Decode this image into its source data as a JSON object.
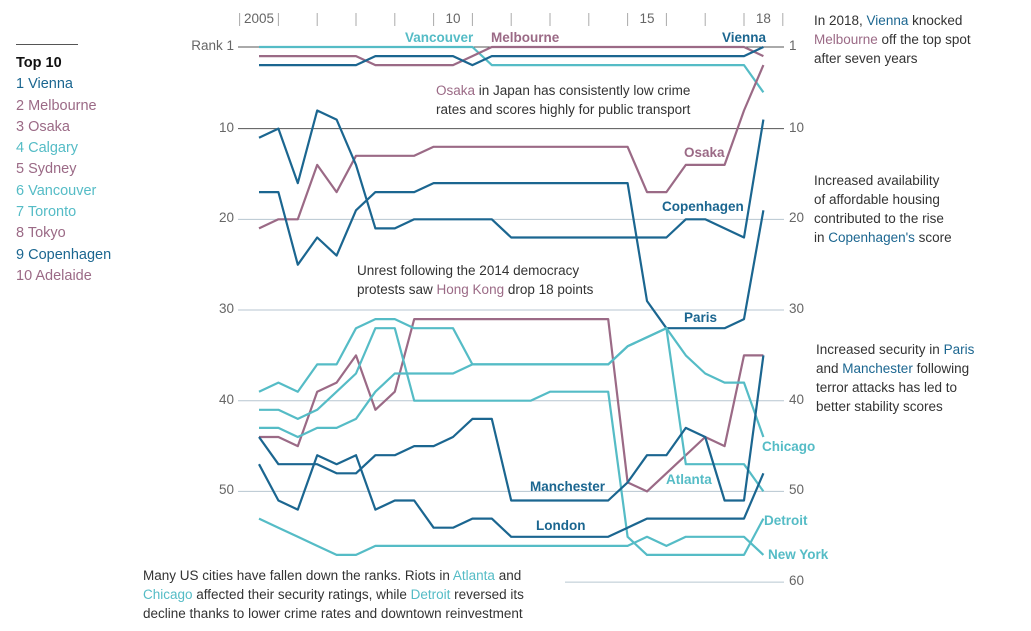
{
  "colors": {
    "blue": "#1b6690",
    "teal": "#55bcc6",
    "mauve": "#9b6a86",
    "text": "#333333",
    "grid_dark": "#555555",
    "grid_light": "#b7c6d0"
  },
  "legend": {
    "title": "Top 10",
    "items": [
      {
        "label": "1 Vienna",
        "color": "#1b6690"
      },
      {
        "label": "2 Melbourne",
        "color": "#9b6a86"
      },
      {
        "label": "3 Osaka",
        "color": "#9b6a86"
      },
      {
        "label": "4 Calgary",
        "color": "#55bcc6"
      },
      {
        "label": "5 Sydney",
        "color": "#9b6a86"
      },
      {
        "label": "6 Vancouver",
        "color": "#55bcc6"
      },
      {
        "label": "7 Toronto",
        "color": "#55bcc6"
      },
      {
        "label": "8 Tokyo",
        "color": "#9b6a86"
      },
      {
        "label": "9 Copenhagen",
        "color": "#1b6690"
      },
      {
        "label": "10 Adelaide",
        "color": "#9b6a86"
      }
    ]
  },
  "chart_data": {
    "type": "line",
    "subtype": "bump chart",
    "x_tick_labels": [
      {
        "year": 2005,
        "label": "2005"
      },
      {
        "year": 2010,
        "label": "10"
      },
      {
        "year": 2015,
        "label": "15"
      },
      {
        "year": 2018,
        "label": "18"
      }
    ],
    "xlim": [
      2005,
      2018
    ],
    "y_reversed": true,
    "ylim": [
      1,
      60
    ],
    "y_ticks_left": [
      {
        "rank": 1,
        "label": "Rank 1"
      },
      {
        "rank": 10,
        "label": "10"
      },
      {
        "rank": 20,
        "label": "20"
      },
      {
        "rank": 30,
        "label": "30"
      },
      {
        "rank": 40,
        "label": "40"
      },
      {
        "rank": 50,
        "label": "50"
      }
    ],
    "y_ticks_right": [
      {
        "rank": 1,
        "label": "1"
      },
      {
        "rank": 10,
        "label": "10"
      },
      {
        "rank": 20,
        "label": "20"
      },
      {
        "rank": 30,
        "label": "30"
      },
      {
        "rank": 40,
        "label": "40"
      },
      {
        "rank": 50,
        "label": "50"
      },
      {
        "rank": 60,
        "label": "60"
      }
    ],
    "x": [
      2005,
      2005.5,
      2006,
      2006.5,
      2007,
      2007.5,
      2008,
      2008.5,
      2009,
      2009.5,
      2010,
      2010.5,
      2011,
      2011.5,
      2012,
      2012.5,
      2013,
      2013.5,
      2014,
      2014.5,
      2015,
      2015.5,
      2016,
      2016.5,
      2017,
      2017.5,
      2018
    ],
    "series": [
      {
        "name": "Vancouver",
        "color": "#55bcc6",
        "values": [
          1,
          1,
          1,
          1,
          1,
          1,
          1,
          1,
          1,
          1,
          1,
          1,
          3,
          3,
          3,
          3,
          3,
          3,
          3,
          3,
          3,
          3,
          3,
          3,
          3,
          3,
          6
        ]
      },
      {
        "name": "Melbourne",
        "color": "#9b6a86",
        "values": [
          2,
          2,
          2,
          2,
          2,
          2,
          3,
          3,
          3,
          3,
          3,
          2,
          1,
          1,
          1,
          1,
          1,
          1,
          1,
          1,
          1,
          1,
          1,
          1,
          1,
          1,
          2
        ]
      },
      {
        "name": "Vienna",
        "color": "#1b6690",
        "values": [
          3,
          3,
          3,
          3,
          3,
          3,
          2,
          2,
          2,
          2,
          2,
          3,
          2,
          2,
          2,
          2,
          2,
          2,
          2,
          2,
          2,
          2,
          2,
          2,
          2,
          2,
          1
        ]
      },
      {
        "name": "Osaka",
        "color": "#9b6a86",
        "values": [
          21,
          20,
          20,
          14,
          17,
          13,
          13,
          13,
          13,
          12,
          12,
          12,
          12,
          12,
          12,
          12,
          12,
          12,
          12,
          12,
          17,
          17,
          14,
          14,
          14,
          8,
          3
        ]
      },
      {
        "name": "Copenhagen",
        "color": "#1b6690",
        "values": [
          11,
          10,
          16,
          8,
          9,
          14,
          21,
          21,
          20,
          20,
          20,
          20,
          20,
          22,
          22,
          22,
          22,
          22,
          22,
          22,
          22,
          22,
          20,
          20,
          21,
          22,
          9
        ]
      },
      {
        "name": "Paris",
        "color": "#1b6690",
        "values": [
          17,
          17,
          25,
          22,
          24,
          19,
          17,
          17,
          17,
          16,
          16,
          16,
          16,
          16,
          16,
          16,
          16,
          16,
          16,
          16,
          29,
          32,
          32,
          32,
          32,
          31,
          19
        ]
      },
      {
        "name": "Hong Kong",
        "color": "#9b6a86",
        "values": [
          44,
          44,
          45,
          39,
          38,
          35,
          41,
          39,
          31,
          31,
          31,
          31,
          31,
          31,
          31,
          31,
          31,
          31,
          31,
          49,
          50,
          48,
          46,
          44,
          45,
          35,
          35
        ]
      },
      {
        "name": "Chicago",
        "color": "#55bcc6",
        "values": [
          39,
          38,
          39,
          36,
          36,
          32,
          31,
          31,
          32,
          32,
          32,
          36,
          36,
          36,
          36,
          36,
          36,
          36,
          36,
          34,
          33,
          32,
          35,
          37,
          38,
          38,
          44
        ]
      },
      {
        "name": "Atlanta",
        "color": "#55bcc6",
        "values": [
          43,
          43,
          44,
          43,
          43,
          42,
          39,
          37,
          37,
          37,
          37,
          36,
          36,
          36,
          36,
          36,
          36,
          36,
          36,
          34,
          33,
          32,
          47,
          47,
          47,
          47,
          50
        ]
      },
      {
        "name": "Detroit",
        "color": "#55bcc6",
        "values": [
          41,
          41,
          42,
          41,
          39,
          37,
          32,
          32,
          40,
          40,
          40,
          40,
          40,
          40,
          40,
          39,
          39,
          39,
          39,
          55,
          57,
          57,
          57,
          57,
          57,
          57,
          53
        ]
      },
      {
        "name": "New York",
        "color": "#55bcc6",
        "values": [
          53,
          54,
          55,
          56,
          57,
          57,
          56,
          56,
          56,
          56,
          56,
          56,
          56,
          56,
          56,
          56,
          56,
          56,
          56,
          56,
          55,
          56,
          55,
          55,
          55,
          55,
          57
        ]
      },
      {
        "name": "Manchester",
        "color": "#1b6690",
        "values": [
          44,
          47,
          47,
          47,
          48,
          48,
          46,
          46,
          45,
          45,
          44,
          42,
          42,
          51,
          51,
          51,
          51,
          51,
          51,
          49,
          46,
          46,
          43,
          44,
          51,
          51,
          35
        ]
      },
      {
        "name": "London",
        "color": "#1b6690",
        "values": [
          47,
          51,
          52,
          46,
          47,
          46,
          52,
          51,
          51,
          54,
          54,
          53,
          53,
          55,
          55,
          55,
          55,
          55,
          55,
          54,
          53,
          53,
          53,
          53,
          53,
          53,
          48
        ]
      }
    ],
    "series_labels": {
      "vancouver": "Vancouver",
      "melbourne": "Melbourne",
      "vienna": "Vienna",
      "osaka": "Osaka",
      "copenhagen": "Copenhagen",
      "paris": "Paris",
      "manchester": "Manchester",
      "london": "London",
      "atlanta": "Atlanta",
      "chicago": "Chicago",
      "detroit": "Detroit",
      "newyork": "New York"
    },
    "annotations": {
      "vienna": [
        {
          "t": "In 2018, "
        },
        {
          "t": "Vienna",
          "c": "#1b6690"
        },
        {
          "t": " knocked\n"
        },
        {
          "t": "Melbourne",
          "c": "#9b6a86"
        },
        {
          "t": " off the top spot\nafter seven years"
        }
      ],
      "osaka": [
        {
          "t": "Osaka",
          "c": "#9b6a86"
        },
        {
          "t": " in Japan has consistently low crime\nrates and scores highly for public transport"
        }
      ],
      "copenhagen": [
        {
          "t": "Increased availability\nof affordable housing\ncontributed to the rise\nin "
        },
        {
          "t": "Copenhagen's",
          "c": "#1b6690"
        },
        {
          "t": " score"
        }
      ],
      "hongkong": [
        {
          "t": "Unrest following the 2014 democracy\nprotests saw "
        },
        {
          "t": "Hong Kong",
          "c": "#9b6a86"
        },
        {
          "t": " drop 18 points"
        }
      ],
      "paris": [
        {
          "t": "Increased security in "
        },
        {
          "t": "Paris",
          "c": "#1b6690"
        },
        {
          "t": "\nand "
        },
        {
          "t": "Manchester",
          "c": "#1b6690"
        },
        {
          "t": " following\nterror attacks has led to\nbetter stability scores"
        }
      ],
      "us": [
        {
          "t": "Many US cities have fallen down the ranks. Riots in "
        },
        {
          "t": "Atlanta",
          "c": "#55bcc6"
        },
        {
          "t": " and\n"
        },
        {
          "t": "Chicago",
          "c": "#55bcc6"
        },
        {
          "t": " affected their security ratings, while "
        },
        {
          "t": "Detroit",
          "c": "#55bcc6"
        },
        {
          "t": " reversed its\ndecline thanks to lower crime rates and downtown reinvestment"
        }
      ]
    }
  }
}
